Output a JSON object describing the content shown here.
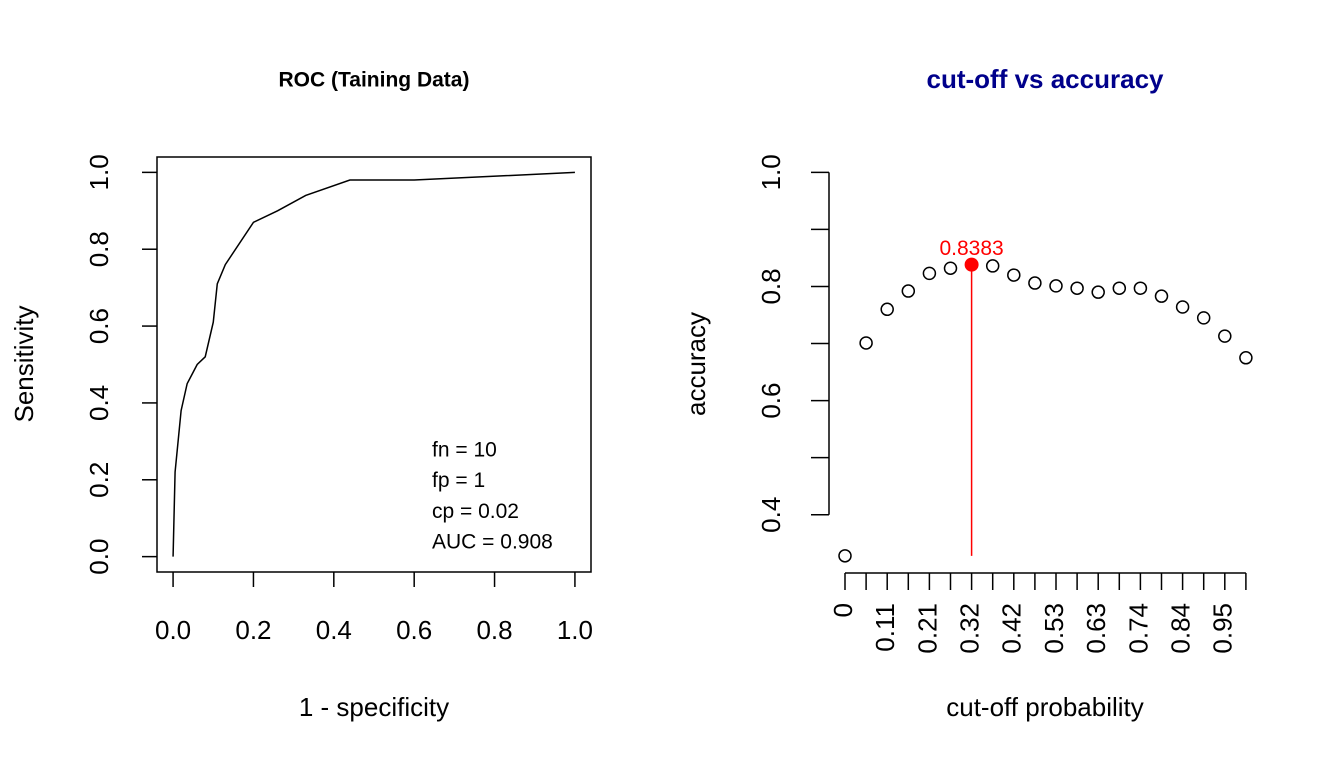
{
  "chart_data": [
    {
      "type": "line",
      "title": "ROC (Taining Data)",
      "x_label": "1 - specificity",
      "y_label": "Sensitivity",
      "x": [
        0,
        0.005,
        0.02,
        0.035,
        0.06,
        0.08,
        0.1,
        0.11,
        0.13,
        0.2,
        0.26,
        0.33,
        0.44,
        0.6,
        1
      ],
      "values": [
        0,
        0.22,
        0.38,
        0.45,
        0.5,
        0.52,
        0.61,
        0.71,
        0.76,
        0.87,
        0.9,
        0.94,
        0.98,
        0.98,
        1
      ],
      "color": "#000000",
      "xlim": [
        -0.04,
        1.04
      ],
      "ylim": [
        -0.04,
        1.04
      ],
      "xticks": [
        {
          "value": 0,
          "label": "0.0"
        },
        0.2,
        0.4,
        0.6,
        0.8,
        {
          "value": 1,
          "label": "1.0"
        }
      ],
      "yticks": [
        {
          "value": 0,
          "label": "0.0"
        },
        0.2,
        0.4,
        0.6,
        0.8,
        {
          "value": 1,
          "label": "1.0"
        }
      ],
      "annotations": [
        "fn = 10",
        "fp = 1",
        "cp = 0.02",
        "AUC = 0.908"
      ]
    },
    {
      "type": "scatter",
      "title": "cut-off vs accuracy",
      "title_color": "#00008b",
      "x_label": "cut-off probability",
      "y_label": "accuracy",
      "categories": [
        "0",
        null,
        "0.11",
        null,
        "0.21",
        null,
        "0.32",
        null,
        "0.42",
        null,
        "0.53",
        null,
        "0.63",
        null,
        "0.74",
        null,
        "0.84",
        null,
        "0.95",
        null
      ],
      "values": [
        0.328,
        0.701,
        0.76,
        0.792,
        0.823,
        0.832,
        0.8383,
        0.836,
        0.82,
        0.806,
        0.801,
        0.797,
        0.79,
        0.797,
        0.797,
        0.783,
        0.764,
        0.745,
        0.713,
        0.675
      ],
      "color": "#000000",
      "highlight_index": 6,
      "highlight_color": "#ff0000",
      "ylim": [
        0.3014,
        1.0269
      ],
      "yticks": [
        0.4,
        0.6,
        0.8,
        {
          "value": 1,
          "label": "1.0"
        }
      ],
      "yminor_ticks": [
        0.5,
        0.7,
        0.9
      ]
    }
  ]
}
